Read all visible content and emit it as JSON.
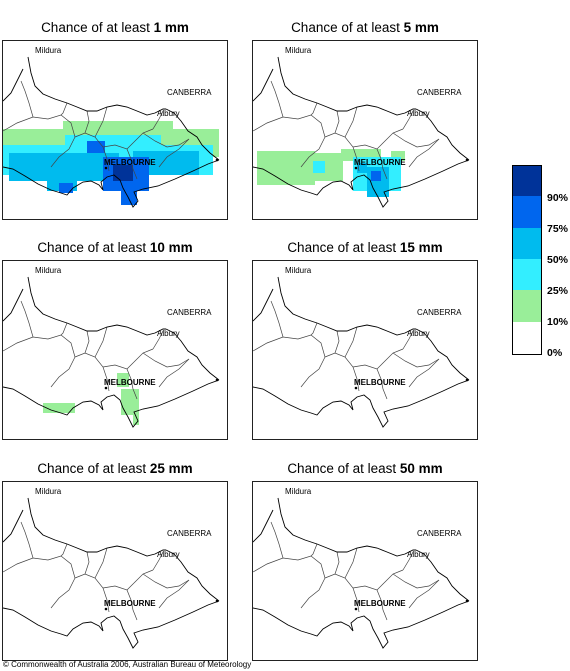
{
  "panels": [
    {
      "prefix": "Chance of at least ",
      "amount": "1 mm",
      "level": 1
    },
    {
      "prefix": "Chance of at least ",
      "amount": "5 mm",
      "level": 2
    },
    {
      "prefix": "Chance of at least ",
      "amount": "10 mm",
      "level": 3
    },
    {
      "prefix": "Chance of at least ",
      "amount": "15 mm",
      "level": 0
    },
    {
      "prefix": "Chance of at least ",
      "amount": "25 mm",
      "level": 0
    },
    {
      "prefix": "Chance of at least ",
      "amount": "50 mm",
      "level": 0
    }
  ],
  "places": {
    "mildura": "Mildura",
    "canberra": "CANBERRA",
    "albury": "Albury",
    "melbourne": "MELBOURNE"
  },
  "legend": {
    "labels": [
      "90%",
      "75%",
      "50%",
      "25%",
      "10%",
      "0%"
    ],
    "colors": [
      "#003399",
      "#0066ee",
      "#00bbee",
      "#33eeff",
      "#99ee99",
      "#ffffff"
    ]
  },
  "copyright": "© Commonwealth of Australia 2006, Australian Bureau of Meteorology"
}
